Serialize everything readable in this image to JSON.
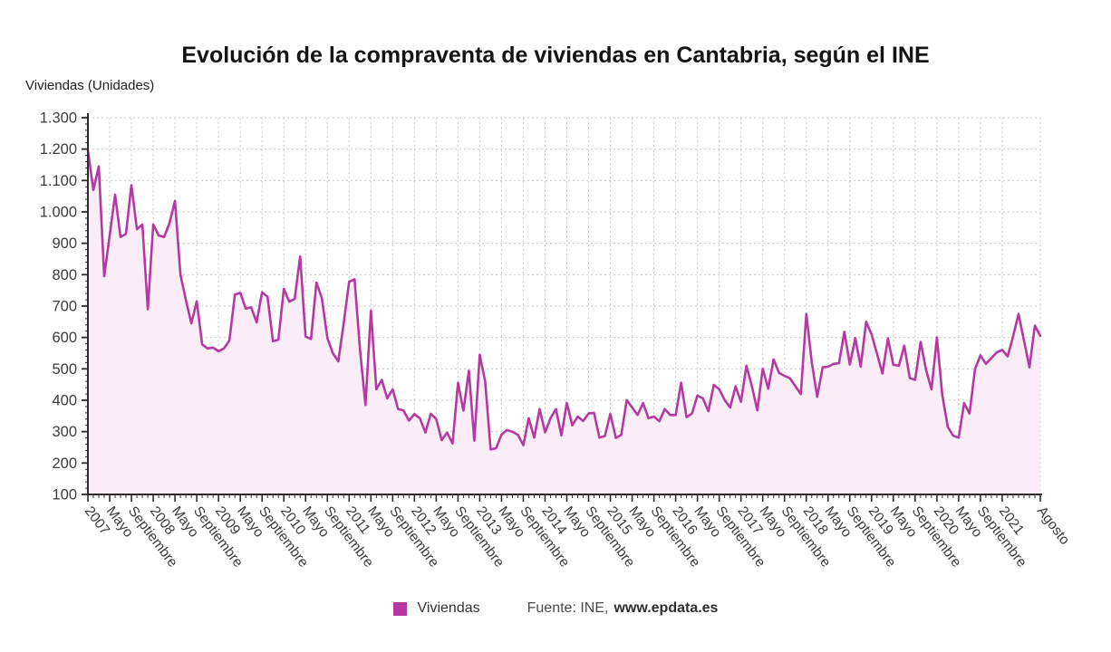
{
  "title": "Evolución de la compraventa de viviendas en Cantabria, según el INE",
  "y_axis_label": "Viviendas (Unidades)",
  "legend": {
    "series_label": "Viviendas",
    "source_prefix": "Fuente: INE,",
    "source_link": "www.epdata.es"
  },
  "colors": {
    "line": "#b43aa1",
    "area_fill": "#faedf7",
    "grid": "#c9c9c9",
    "axis": "#2b2b2b",
    "tick_text": "#3c3c3c"
  },
  "chart_data": {
    "type": "area",
    "title": "Evolución de la compraventa de viviendas en Cantabria, según el INE",
    "xlabel": "",
    "ylabel": "Viviendas (Unidades)",
    "ylim": [
      100,
      1300
    ],
    "grid": true,
    "legend_position": "bottom",
    "x_start": "2007-01",
    "x_end": "2021-08",
    "y_ticks": [
      "100",
      "200",
      "300",
      "400",
      "500",
      "600",
      "700",
      "800",
      "900",
      "1.000",
      "1.100",
      "1.200",
      "1.300"
    ],
    "x_tick_labels": [
      {
        "i": 0,
        "label": "2007"
      },
      {
        "i": 4,
        "label": "Mayo"
      },
      {
        "i": 8,
        "label": "Septiembre"
      },
      {
        "i": 12,
        "label": "2008"
      },
      {
        "i": 16,
        "label": "Mayo"
      },
      {
        "i": 20,
        "label": "Septiembre"
      },
      {
        "i": 24,
        "label": "2009"
      },
      {
        "i": 28,
        "label": "Mayo"
      },
      {
        "i": 32,
        "label": "Septiembre"
      },
      {
        "i": 36,
        "label": "2010"
      },
      {
        "i": 40,
        "label": "Mayo"
      },
      {
        "i": 44,
        "label": "Septiembre"
      },
      {
        "i": 48,
        "label": "2011"
      },
      {
        "i": 52,
        "label": "Mayo"
      },
      {
        "i": 56,
        "label": "Septiembre"
      },
      {
        "i": 60,
        "label": "2012"
      },
      {
        "i": 64,
        "label": "Mayo"
      },
      {
        "i": 68,
        "label": "Septiembre"
      },
      {
        "i": 72,
        "label": "2013"
      },
      {
        "i": 76,
        "label": "Mayo"
      },
      {
        "i": 80,
        "label": "Septiembre"
      },
      {
        "i": 84,
        "label": "2014"
      },
      {
        "i": 88,
        "label": "Mayo"
      },
      {
        "i": 92,
        "label": "Septiembre"
      },
      {
        "i": 96,
        "label": "2015"
      },
      {
        "i": 100,
        "label": "Mayo"
      },
      {
        "i": 104,
        "label": "Septiembre"
      },
      {
        "i": 108,
        "label": "2016"
      },
      {
        "i": 112,
        "label": "Mayo"
      },
      {
        "i": 116,
        "label": "Septiembre"
      },
      {
        "i": 120,
        "label": "2017"
      },
      {
        "i": 124,
        "label": "Mayo"
      },
      {
        "i": 128,
        "label": "Septiembre"
      },
      {
        "i": 132,
        "label": "2018"
      },
      {
        "i": 136,
        "label": "Mayo"
      },
      {
        "i": 140,
        "label": "Septiembre"
      },
      {
        "i": 144,
        "label": "2019"
      },
      {
        "i": 148,
        "label": "Mayo"
      },
      {
        "i": 152,
        "label": "Septiembre"
      },
      {
        "i": 156,
        "label": "2020"
      },
      {
        "i": 160,
        "label": "Mayo"
      },
      {
        "i": 164,
        "label": "Septiembre"
      },
      {
        "i": 168,
        "label": "2021"
      },
      {
        "i": 175,
        "label": "Agosto"
      }
    ],
    "series": [
      {
        "name": "Viviendas",
        "unit": "unidades",
        "monthly_values": [
          1195,
          1070,
          1145,
          795,
          925,
          1055,
          920,
          930,
          1085,
          945,
          960,
          690,
          960,
          925,
          920,
          965,
          1035,
          800,
          720,
          645,
          715,
          578,
          565,
          568,
          556,
          565,
          590,
          737,
          742,
          692,
          696,
          648,
          744,
          730,
          588,
          593,
          755,
          714,
          723,
          858,
          603,
          595,
          775,
          725,
          598,
          550,
          524,
          646,
          778,
          785,
          560,
          385,
          685,
          435,
          465,
          406,
          435,
          372,
          367,
          335,
          356,
          343,
          297,
          357,
          340,
          273,
          297,
          262,
          455,
          367,
          494,
          271,
          545,
          460,
          243,
          247,
          290,
          305,
          300,
          290,
          257,
          343,
          281,
          372,
          298,
          343,
          372,
          288,
          392,
          320,
          348,
          334,
          358,
          360,
          281,
          286,
          357,
          280,
          290,
          401,
          377,
          353,
          391,
          343,
          348,
          333,
          372,
          353,
          353,
          456,
          346,
          358,
          415,
          406,
          365,
          449,
          435,
          401,
          377,
          444,
          395,
          510,
          445,
          368,
          500,
          437,
          530,
          487,
          478,
          470,
          445,
          420,
          675,
          521,
          411,
          505,
          507,
          516,
          518,
          618,
          514,
          598,
          507,
          650,
          610,
          548,
          485,
          597,
          513,
          510,
          574,
          471,
          465,
          586,
          497,
          435,
          600,
          415,
          315,
          287,
          281,
          391,
          358,
          499,
          543,
          516,
          534,
          553,
          560,
          540,
          604,
          675,
          590,
          505,
          638,
          605
        ]
      }
    ]
  }
}
